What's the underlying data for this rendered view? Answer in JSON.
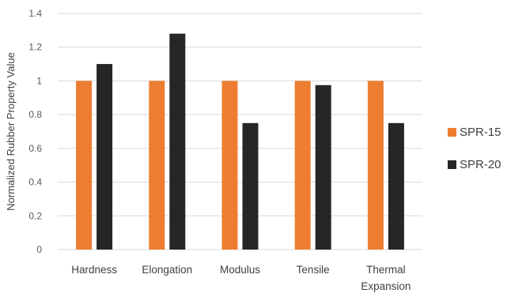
{
  "chart_data": {
    "type": "bar",
    "categories": [
      "Hardness",
      "Elongation",
      "Modulus",
      "Tensile",
      "Thermal Expansion"
    ],
    "category_lines": [
      [
        "Hardness"
      ],
      [
        "Elongation"
      ],
      [
        "Modulus"
      ],
      [
        "Tensile"
      ],
      [
        "Thermal",
        "Expansion"
      ]
    ],
    "series": [
      {
        "name": "SPR-15",
        "color": "#ED7D31",
        "values": [
          1.0,
          1.0,
          1.0,
          1.0,
          1.0
        ]
      },
      {
        "name": "SPR-20",
        "color": "#262626",
        "values": [
          1.1,
          1.28,
          0.75,
          0.975,
          0.75
        ]
      }
    ],
    "title": "",
    "xlabel": "",
    "ylabel": "Normalized Rubber Property Value",
    "ylim": [
      0,
      1.4
    ],
    "yticks": [
      0,
      0.2,
      0.4,
      0.6,
      0.8,
      1,
      1.2,
      1.4
    ],
    "ytick_labels": [
      "0",
      "0.2",
      "0.4",
      "0.6",
      "0.8",
      "1",
      "1.2",
      "1.4"
    ],
    "grid": true,
    "legend_position": "right"
  }
}
